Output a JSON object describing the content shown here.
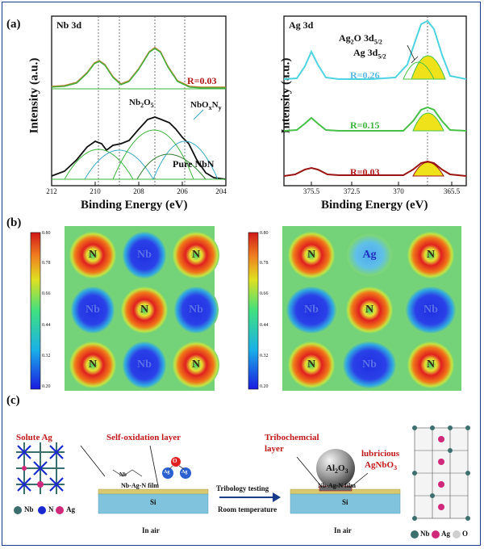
{
  "panel_labels": {
    "a": "(a)",
    "b": "(b)",
    "c": "(c)"
  },
  "nb_panel": {
    "tag": "Nb 3d",
    "ylabel": "Intensity (a.u.)",
    "xlabel": "Binding Energy (eV)",
    "ticks": [
      "212",
      "210",
      "208",
      "206",
      "204"
    ],
    "r_label": "R=0.03",
    "peak1_main": "Nb",
    "peak1_sub": "2",
    "peak1_main2": "O",
    "peak1_sub2": "5",
    "peak2_main": "NbO",
    "peak2_sub": "x",
    "peak2_main2": "N",
    "peak2_sub2": "y",
    "pure": "Pure NbN",
    "colors": {
      "r_label": "#b01818",
      "envelope": "#111111",
      "fit": "#3cb43c",
      "cyan": "#3aa8c8"
    }
  },
  "ag_panel": {
    "tag": "Ag 3d",
    "ylabel": "Intensity (a.u.)",
    "xlabel": "Binding Energy (eV)",
    "ticks": [
      "375.5",
      "372.5",
      "370",
      "365.5"
    ],
    "ag2o_main": "Ag",
    "ag2o_sub": "2",
    "ag2o_rest": "O 3d",
    "ag2o_sub2": "5/2",
    "ag_main": "Ag 3d",
    "ag_sub": "5/2",
    "r_values": [
      {
        "label": "R=0.26",
        "color": "#5ab8e0"
      },
      {
        "label": "R=0.15",
        "color": "#3cb43c"
      },
      {
        "label": "R=0.03",
        "color": "#b01818"
      }
    ],
    "colors": {
      "cyan": "#4fd3e0",
      "green": "#48c048",
      "red": "#9a1414",
      "yellow": "#f0e21a"
    }
  },
  "maps": {
    "cbar_ticks": [
      "0.80",
      "0.78",
      "0.66",
      "0.44",
      "0.32",
      "0.20"
    ],
    "left_grid": [
      [
        "N",
        "Nb",
        "N"
      ],
      [
        "Nb",
        "N",
        "Nb"
      ],
      [
        "N",
        "Nb",
        "N"
      ]
    ],
    "right_grid": [
      [
        "N",
        "Ag",
        "N"
      ],
      [
        "Nb",
        "N",
        "Nb"
      ],
      [
        "N",
        "Nb",
        "N"
      ]
    ]
  },
  "schematic": {
    "solute_ag": "Solute Ag",
    "self_oxidation": "Self-oxidation layer",
    "film": "Nb-Ag-N film",
    "si": "Si",
    "in_air_left": "In air",
    "legend_nb": "Nb",
    "legend_n": "N",
    "legend_ag": "Ag",
    "molecule_nb": "Nb",
    "molecule_o": "O",
    "molecule_ag": "Ag",
    "tribology": "Tribology testing",
    "room_temp": "Room temperature",
    "tribo_layer_1": "Tribochemcial",
    "tribo_layer_2": "layer",
    "ball_main": "Al",
    "ball_sub": "2",
    "ball_rest": "O",
    "ball_sub2": "3",
    "lubricious_1": "lubricious",
    "lubricious_2": "AgNbO",
    "lubricious_sub": "3",
    "film_right": "Nb-Ag-N film",
    "si_right": "Si",
    "in_air_right": "In air",
    "legend2_nb": "Nb",
    "legend2_ag": "Ag",
    "legend2_o": "O",
    "colors": {
      "red_text": "#c01818",
      "film": "#d8c870",
      "si": "#7fc4dc",
      "nb": "#3d6e6e",
      "n": "#1a28d0",
      "ag": "#d0287a",
      "o": "#cfcfcf"
    }
  }
}
